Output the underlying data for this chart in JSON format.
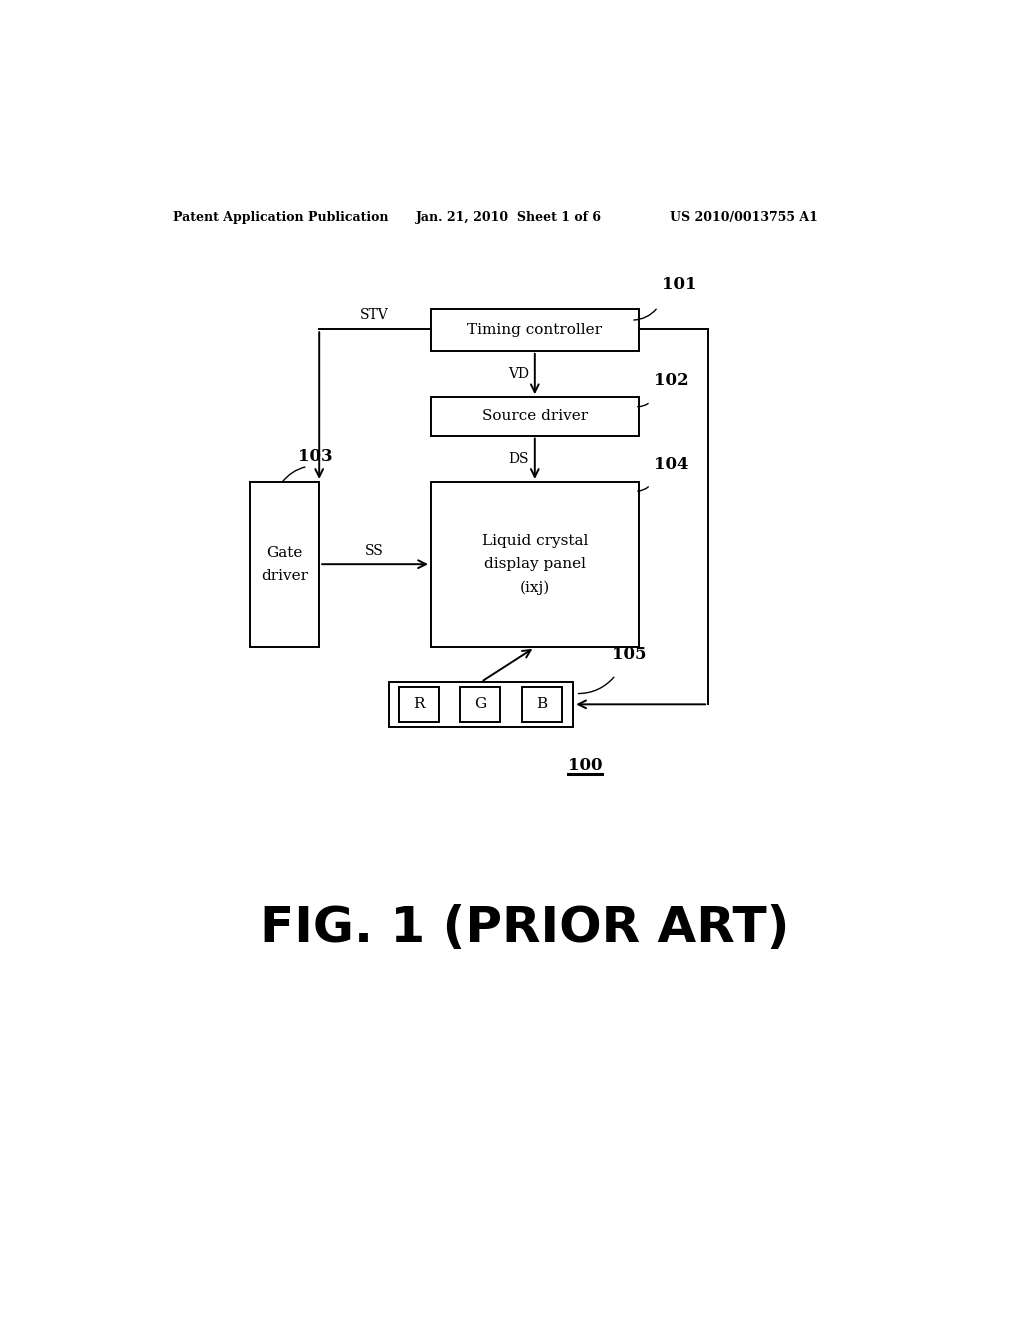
{
  "bg_color": "#ffffff",
  "header_left": "Patent Application Publication",
  "header_mid": "Jan. 21, 2010  Sheet 1 of 6",
  "header_right": "US 2010/0013755 A1",
  "fig_label": "FIG. 1 (PRIOR ART)",
  "ref_100": "100",
  "ref_101": "101",
  "ref_102": "102",
  "ref_103": "103",
  "ref_104": "104",
  "ref_105": "105",
  "box_timing": "Timing controller",
  "box_source": "Source driver",
  "box_gate": "Gate\ndriver",
  "box_lcd": "Liquid crystal\ndisplay panel\n(ixj)",
  "label_STV": "STV",
  "label_VD": "VD",
  "label_DS": "DS",
  "label_SS": "SS",
  "rgb_R": "R",
  "rgb_G": "G",
  "rgb_B": "B",
  "lw": 1.4,
  "font_diagram": 11,
  "font_ref": 12,
  "font_label": 10,
  "font_header": 9,
  "font_fig": 36
}
